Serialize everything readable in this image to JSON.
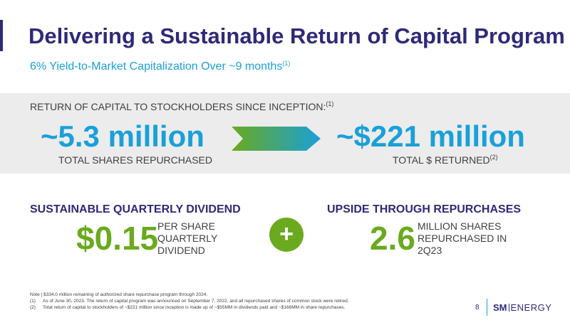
{
  "title": "Delivering a Sustainable Return of Capital Program",
  "subtitle": {
    "text": "6% Yield-to-Market Capitalization Over ~9 months",
    "sup": "(1)"
  },
  "return_band": {
    "heading": "RETURN OF CAPITAL TO STOCKHOLDERS SINCE INCEPTION:",
    "heading_sup": "(1)",
    "shares_value": "~5.3 million",
    "shares_caption": "TOTAL SHARES REPURCHASED",
    "dollars_value": "~$221 million",
    "dollars_caption": "TOTAL $ RETURNED",
    "dollars_caption_sup": "(2)"
  },
  "dividend": {
    "heading": "SUSTAINABLE QUARTERLY DIVIDEND",
    "value": "$0.15",
    "desc": [
      "PER SHARE",
      "QUARTERLY",
      "DIVIDEND"
    ]
  },
  "plus_symbol": "+",
  "repurchases": {
    "heading": "UPSIDE THROUGH REPURCHASES",
    "value": "2.6",
    "desc": [
      "MILLION SHARES",
      "REPURCHASED IN",
      "2Q23"
    ]
  },
  "notes": {
    "note": "Note | $334.0 million remaining of authorized share repurchase program through 2024.",
    "items": [
      {
        "num": "(1)",
        "text": "As of June 30, 2023. The return of capital program was announced on September 7, 2022, and all repurchased shares of common stock were retired."
      },
      {
        "num": "(2)",
        "text": "Total return of capital to stockholders of ~$221 million since inception is made up of ~$55MM in dividends paid and ~$166MM in share repurchases."
      }
    ]
  },
  "footer": {
    "page": "8",
    "logo_sm": "SM",
    "logo_energy": "ENERGY"
  },
  "colors": {
    "navy": "#2e2a78",
    "blue": "#1aa0d8",
    "green": "#6aaa1e",
    "band": "#ececec"
  },
  "icons": {
    "arrow": "gradient-arrow-icon",
    "plus": "plus-icon"
  }
}
